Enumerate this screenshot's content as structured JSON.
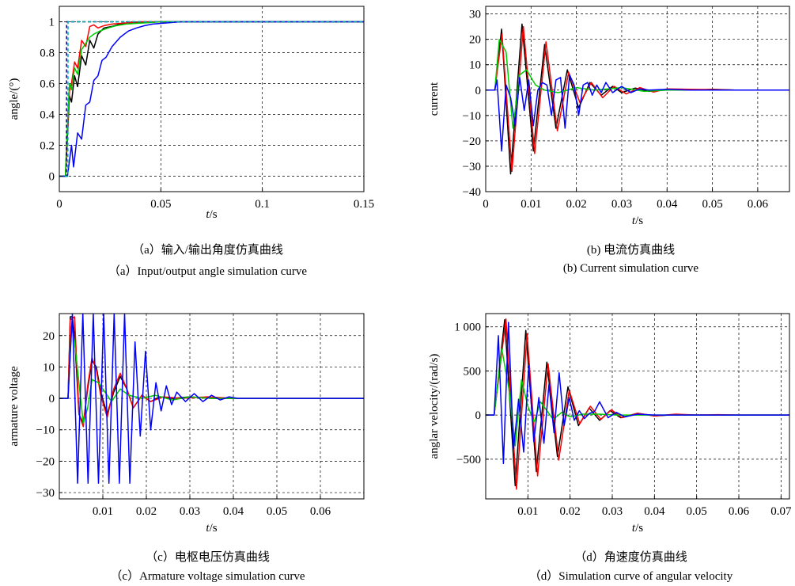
{
  "panels": [
    {
      "caption_cn": "（a）输入/输出角度仿真曲线",
      "caption_en": "（a）Input/output angle simulation curve"
    },
    {
      "caption_cn": "(b) 电流仿真曲线",
      "caption_en": "(b) Current simulation curve"
    },
    {
      "caption_cn": "（c）电枢电压仿真曲线",
      "caption_en": "（c）Armature voltage simulation curve"
    },
    {
      "caption_cn": "（d）角速度仿真曲线",
      "caption_en": "（d）Simulation curve of angular velocity"
    }
  ],
  "chart_data": [
    {
      "type": "line",
      "xlabel_italic": "t",
      "xlabel_unit": "/s",
      "ylabel": "angle/(°)",
      "xlim": [
        0,
        0.15
      ],
      "ylim": [
        -0.1,
        1.1
      ],
      "xticks": [
        0,
        0.05,
        0.1,
        0.15
      ],
      "xtick_labels": [
        "0",
        "0.05",
        "0.1",
        "0.15"
      ],
      "yticks": [
        0,
        0.2,
        0.4,
        0.6,
        0.8,
        1
      ],
      "ytick_labels": [
        "0",
        "0.2",
        "0.4",
        "0.6",
        "0.8",
        "1"
      ],
      "grid": true,
      "series": [
        {
          "color": "#000000",
          "x": [
            0,
            0.003,
            0.0035,
            0.005,
            0.006,
            0.0075,
            0.009,
            0.011,
            0.013,
            0.015,
            0.017,
            0.019,
            0.022,
            0.026,
            0.03,
            0.035,
            0.04,
            0.05,
            0.06,
            0.15
          ],
          "y": [
            0,
            0,
            0.12,
            0.52,
            0.48,
            0.65,
            0.58,
            0.78,
            0.72,
            0.88,
            0.83,
            0.92,
            0.96,
            0.97,
            0.985,
            0.99,
            0.995,
            1,
            1,
            1
          ]
        },
        {
          "color": "#ff0000",
          "x": [
            0,
            0.003,
            0.0035,
            0.005,
            0.006,
            0.0075,
            0.009,
            0.011,
            0.013,
            0.015,
            0.017,
            0.019,
            0.022,
            0.026,
            0.03,
            0.035,
            0.04,
            0.05,
            0.06,
            0.15
          ],
          "y": [
            0,
            0,
            0.15,
            0.55,
            0.6,
            0.74,
            0.7,
            0.88,
            0.84,
            0.97,
            0.98,
            0.96,
            0.975,
            0.985,
            0.99,
            0.995,
            1,
            1,
            1,
            1
          ]
        },
        {
          "color": "#00cc00",
          "x": [
            0,
            0.003,
            0.0035,
            0.005,
            0.006,
            0.0075,
            0.009,
            0.011,
            0.013,
            0.015,
            0.017,
            0.02,
            0.024,
            0.028,
            0.033,
            0.038,
            0.045,
            0.05,
            0.06,
            0.15
          ],
          "y": [
            0,
            0,
            0.2,
            0.6,
            0.56,
            0.7,
            0.66,
            0.82,
            0.86,
            0.9,
            0.92,
            0.94,
            0.96,
            0.975,
            0.985,
            0.99,
            0.995,
            1,
            1,
            1
          ]
        },
        {
          "color": "#0000ff",
          "x": [
            0,
            0.004,
            0.0045,
            0.006,
            0.007,
            0.009,
            0.011,
            0.013,
            0.015,
            0.017,
            0.019,
            0.021,
            0.023,
            0.026,
            0.03,
            0.034,
            0.038,
            0.042,
            0.046,
            0.05,
            0.055,
            0.06,
            0.15
          ],
          "y": [
            0,
            0,
            0.05,
            0.2,
            0.06,
            0.28,
            0.24,
            0.46,
            0.48,
            0.62,
            0.65,
            0.75,
            0.77,
            0.84,
            0.9,
            0.94,
            0.96,
            0.975,
            0.985,
            0.99,
            0.995,
            1,
            1
          ]
        },
        {
          "color": "#000080",
          "dashed": true,
          "x": [
            0,
            0.0035,
            0.0036,
            0.15
          ],
          "y": [
            0,
            0,
            1,
            1
          ]
        },
        {
          "color": "#00aaaa",
          "dashed": true,
          "x": [
            0,
            0.0042,
            0.0043,
            0.15
          ],
          "y": [
            0,
            0,
            1,
            1
          ]
        }
      ]
    },
    {
      "type": "line",
      "xlabel_italic": "t",
      "xlabel_unit": "/s",
      "ylabel": "current",
      "xlim": [
        0,
        0.067
      ],
      "ylim": [
        -40,
        33
      ],
      "xticks": [
        0,
        0.01,
        0.02,
        0.03,
        0.04,
        0.05,
        0.06
      ],
      "xtick_labels": [
        "0",
        "0.01",
        "0.02",
        "0.03",
        "0.04",
        "0.05",
        "0.06"
      ],
      "yticks": [
        -40,
        -30,
        -20,
        -10,
        0,
        10,
        20,
        30
      ],
      "ytick_labels": [
        "−40",
        "−30",
        "−20",
        "−10",
        "0",
        "10",
        "20",
        "30"
      ],
      "grid": true,
      "series": [
        {
          "color": "#000000",
          "x": [
            0,
            0.002,
            0.0035,
            0.0055,
            0.008,
            0.0105,
            0.013,
            0.0155,
            0.018,
            0.0205,
            0.023,
            0.0255,
            0.028,
            0.03,
            0.033,
            0.036,
            0.04,
            0.045,
            0.05,
            0.055,
            0.067
          ],
          "y": [
            0,
            0,
            24,
            -33,
            26,
            -24,
            18,
            -15,
            8,
            -7,
            3,
            -2,
            1.5,
            -1,
            0.8,
            -0.5,
            0.3,
            0,
            0.3,
            0,
            0
          ]
        },
        {
          "color": "#ff0000",
          "x": [
            0,
            0.002,
            0.0036,
            0.0058,
            0.0083,
            0.0108,
            0.0133,
            0.0158,
            0.0183,
            0.0208,
            0.0233,
            0.0258,
            0.0283,
            0.031,
            0.034,
            0.037,
            0.04,
            0.045,
            0.05,
            0.055,
            0.067
          ],
          "y": [
            0,
            0,
            22,
            -32,
            25,
            -25,
            19,
            -16,
            7,
            -5,
            3,
            -3,
            1.5,
            -1.5,
            1,
            -0.8,
            0.5,
            0.3,
            0.2,
            0,
            0
          ]
        },
        {
          "color": "#00cc00",
          "x": [
            0,
            0.002,
            0.003,
            0.0045,
            0.006,
            0.0075,
            0.009,
            0.011,
            0.013,
            0.016,
            0.02,
            0.024,
            0.03,
            0.035,
            0.04,
            0.067
          ],
          "y": [
            0,
            0,
            20,
            15,
            -15,
            6,
            8,
            2,
            0,
            -1,
            1,
            0,
            1,
            -0.5,
            0,
            0
          ]
        },
        {
          "color": "#0000ff",
          "x": [
            0,
            0.002,
            0.0025,
            0.0035,
            0.0045,
            0.0055,
            0.0065,
            0.0075,
            0.0085,
            0.0095,
            0.0105,
            0.0115,
            0.0125,
            0.0135,
            0.0145,
            0.0155,
            0.0165,
            0.0175,
            0.0185,
            0.0195,
            0.0205,
            0.0215,
            0.0225,
            0.0235,
            0.0245,
            0.0255,
            0.0265,
            0.028,
            0.03,
            0.032,
            0.034,
            0.036,
            0.04,
            0.045,
            0.05,
            0.067
          ],
          "y": [
            0,
            0,
            4,
            -24,
            2,
            -3,
            -14,
            5,
            -8,
            4,
            -14,
            0,
            3,
            2,
            -10,
            4,
            5,
            -15,
            6,
            2,
            -10,
            2,
            3,
            -2,
            2,
            -1,
            3,
            -1,
            1.5,
            -1,
            0.5,
            0,
            0.3,
            0,
            0,
            0
          ]
        }
      ]
    },
    {
      "type": "line",
      "xlabel_italic": "t",
      "xlabel_unit": "/s",
      "ylabel": "armature voltage",
      "xlim": [
        0,
        0.07
      ],
      "ylim": [
        -32,
        27
      ],
      "xticks": [
        0.01,
        0.02,
        0.03,
        0.04,
        0.05,
        0.06
      ],
      "xtick_labels": [
        "0.01",
        "0.02",
        "0.03",
        "0.04",
        "0.05",
        "0.06"
      ],
      "yticks": [
        -30,
        -20,
        -10,
        0,
        10,
        20
      ],
      "ytick_labels": [
        "−30",
        "−20",
        "−10",
        "0",
        "10",
        "20"
      ],
      "grid": true,
      "series": [
        {
          "color": "#000000",
          "x": [
            0,
            0.002,
            0.0025,
            0.003,
            0.0035,
            0.0045,
            0.0055,
            0.0065,
            0.0075,
            0.0085,
            0.0095,
            0.011,
            0.0125,
            0.014,
            0.0155,
            0.017,
            0.019,
            0.021,
            0.023,
            0.026,
            0.03,
            0.035,
            0.04,
            0.07
          ],
          "y": [
            0,
            0,
            26,
            26,
            20,
            -5,
            -8,
            3,
            12,
            10,
            2,
            -5,
            2,
            7,
            3,
            -3,
            1,
            -1,
            0.5,
            0,
            0.5,
            0,
            0,
            0
          ]
        },
        {
          "color": "#ff0000",
          "x": [
            0,
            0.002,
            0.0025,
            0.0035,
            0.0045,
            0.0055,
            0.0065,
            0.0075,
            0.0085,
            0.0095,
            0.011,
            0.0125,
            0.014,
            0.0155,
            0.017,
            0.019,
            0.021,
            0.024,
            0.028,
            0.034,
            0.04,
            0.07
          ],
          "y": [
            0,
            0,
            25,
            26,
            -5,
            -9,
            4,
            13,
            9,
            1,
            -6,
            3,
            8,
            3,
            -3,
            1,
            -1,
            0.5,
            0,
            0.5,
            0,
            0
          ]
        },
        {
          "color": "#00cc00",
          "x": [
            0,
            0.002,
            0.0028,
            0.0035,
            0.0045,
            0.0055,
            0.0065,
            0.0075,
            0.009,
            0.0105,
            0.012,
            0.014,
            0.016,
            0.019,
            0.022,
            0.026,
            0.03,
            0.035,
            0.04,
            0.07
          ],
          "y": [
            0,
            0,
            23,
            18,
            5,
            -8,
            -3,
            6,
            5,
            2,
            -1,
            3,
            1,
            0,
            1,
            -0.5,
            0.5,
            0,
            0,
            0
          ]
        },
        {
          "color": "#0000ff",
          "x": [
            0,
            0.002,
            0.003,
            0.0042,
            0.0054,
            0.0066,
            0.0078,
            0.009,
            0.0102,
            0.0114,
            0.0126,
            0.0138,
            0.015,
            0.0162,
            0.0174,
            0.0186,
            0.0198,
            0.021,
            0.0222,
            0.0234,
            0.0246,
            0.0258,
            0.027,
            0.029,
            0.031,
            0.033,
            0.035,
            0.037,
            0.039,
            0.041,
            0.07
          ],
          "y": [
            0,
            0,
            27,
            -27,
            27,
            -27,
            27,
            -27,
            27,
            -27,
            27,
            -27,
            27,
            -27,
            18,
            -12,
            15,
            -10,
            5,
            -4,
            4,
            -2,
            2,
            -1,
            1.5,
            -1,
            1,
            -0.5,
            0.5,
            0,
            0
          ]
        }
      ]
    },
    {
      "type": "line",
      "xlabel_italic": "t",
      "xlabel_unit": "/s",
      "ylabel": "anglar velocity/(rad/s)",
      "xlim": [
        0,
        0.072
      ],
      "ylim": [
        -950,
        1150
      ],
      "xticks": [
        0.01,
        0.02,
        0.03,
        0.04,
        0.05,
        0.06,
        0.07
      ],
      "xtick_labels": [
        "0.01",
        "0.02",
        "0.03",
        "0.04",
        "0.05",
        "0.06",
        "0.07"
      ],
      "yticks": [
        -500,
        0,
        500,
        1000
      ],
      "ytick_labels": [
        "−500",
        "0",
        "500",
        "1 000"
      ],
      "grid": true,
      "series": [
        {
          "color": "#000000",
          "x": [
            0,
            0.002,
            0.0045,
            0.007,
            0.0095,
            0.012,
            0.0145,
            0.017,
            0.0195,
            0.022,
            0.0245,
            0.027,
            0.0295,
            0.032,
            0.036,
            0.04,
            0.045,
            0.05,
            0.055,
            0.072
          ],
          "y": [
            0,
            0,
            1080,
            -800,
            960,
            -640,
            600,
            -470,
            320,
            -120,
            80,
            -60,
            50,
            -30,
            20,
            -10,
            5,
            0,
            0,
            0
          ]
        },
        {
          "color": "#ff0000",
          "x": [
            0,
            0.002,
            0.0048,
            0.0073,
            0.0098,
            0.0123,
            0.0148,
            0.0173,
            0.0198,
            0.0223,
            0.0248,
            0.0273,
            0.0298,
            0.0323,
            0.036,
            0.04,
            0.045,
            0.05,
            0.055,
            0.06,
            0.072
          ],
          "y": [
            0,
            0,
            1090,
            -840,
            920,
            -690,
            580,
            -510,
            280,
            -100,
            100,
            -50,
            60,
            -30,
            20,
            -10,
            10,
            0,
            5,
            0,
            0
          ]
        },
        {
          "color": "#00cc00",
          "x": [
            0,
            0.002,
            0.0038,
            0.0055,
            0.007,
            0.0085,
            0.01,
            0.0115,
            0.013,
            0.0145,
            0.016,
            0.018,
            0.02,
            0.023,
            0.027,
            0.031,
            0.036,
            0.072
          ],
          "y": [
            0,
            0,
            750,
            300,
            -350,
            400,
            100,
            -80,
            150,
            50,
            -50,
            30,
            -20,
            10,
            10,
            0,
            0,
            0
          ]
        },
        {
          "color": "#0000ff",
          "x": [
            0,
            0.002,
            0.003,
            0.0042,
            0.0054,
            0.0066,
            0.0078,
            0.009,
            0.0102,
            0.0114,
            0.0126,
            0.0138,
            0.015,
            0.0162,
            0.0174,
            0.0186,
            0.0198,
            0.021,
            0.0222,
            0.0234,
            0.0246,
            0.0258,
            0.027,
            0.029,
            0.031,
            0.033,
            0.036,
            0.04,
            0.045,
            0.072
          ],
          "y": [
            0,
            0,
            900,
            -550,
            1050,
            -380,
            180,
            -420,
            560,
            -300,
            200,
            -320,
            350,
            -200,
            480,
            -120,
            200,
            -60,
            50,
            -40,
            20,
            40,
            150,
            -30,
            30,
            -20,
            10,
            0,
            0,
            0
          ]
        }
      ]
    }
  ]
}
